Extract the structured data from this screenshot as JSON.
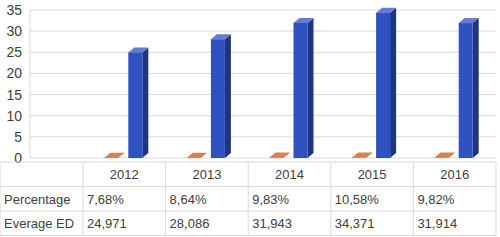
{
  "chart_data": {
    "type": "bar",
    "categories": [
      "2012",
      "2013",
      "2014",
      "2015",
      "2016"
    ],
    "series": [
      {
        "name": "Percentage",
        "color": "#c55a11",
        "values": [
          0.0768,
          0.0864,
          0.0983,
          0.1058,
          0.0982
        ],
        "value_labels": [
          "7,68%",
          "8,64%",
          "9,83%",
          "10,58%",
          "9,82%"
        ]
      },
      {
        "name": "Everage ED",
        "color": "#2f52c0",
        "values": [
          24.971,
          28.086,
          31.943,
          34.371,
          31.914
        ],
        "value_labels": [
          "24,971",
          "28,086",
          "31,943",
          "34,371",
          "31,914"
        ]
      }
    ],
    "ylim": [
      0,
      35
    ],
    "yticks": [
      0,
      5,
      10,
      15,
      20,
      25,
      30,
      35
    ],
    "grid": true
  }
}
